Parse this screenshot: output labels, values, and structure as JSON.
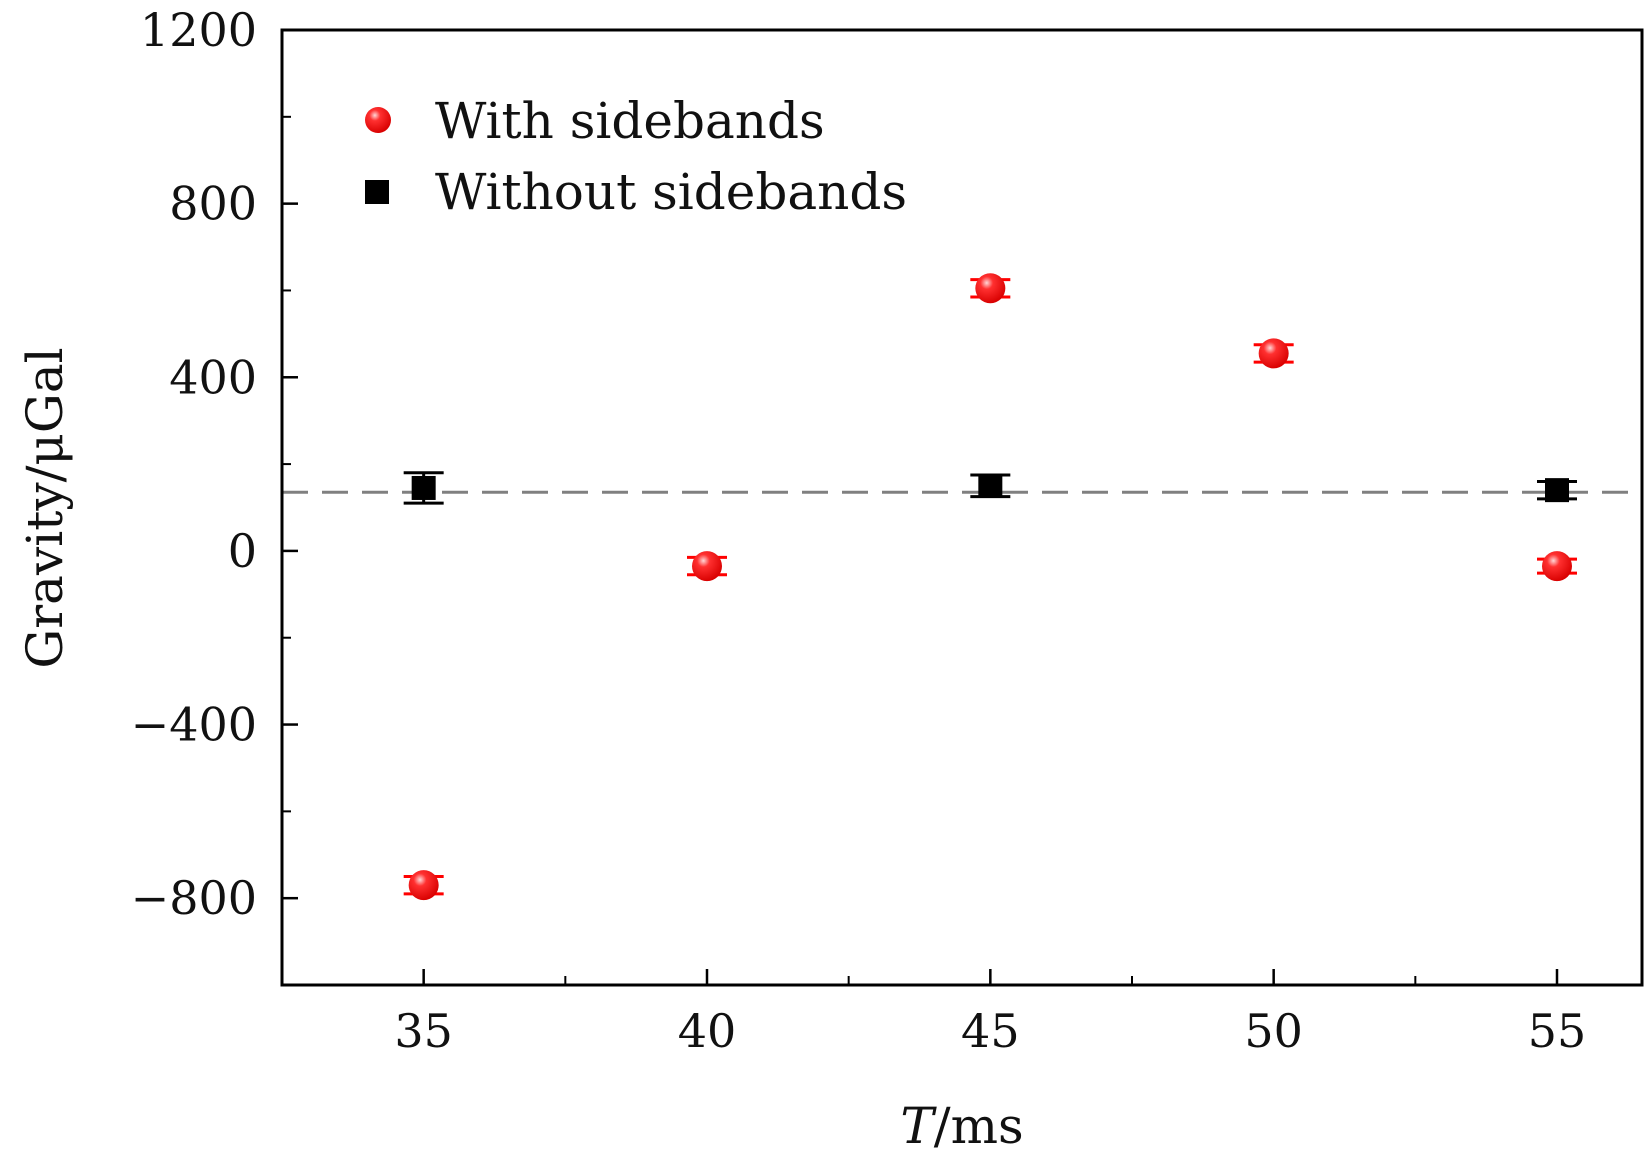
{
  "chart_data": {
    "type": "scatter",
    "title": "",
    "xlabel_var": "T",
    "xlabel_unit": "/ms",
    "ylabel": "Gravity/μGal",
    "xlim": [
      32.5,
      56.5
    ],
    "ylim": [
      -1000,
      1200
    ],
    "x_ticks": [
      35,
      40,
      45,
      50,
      55
    ],
    "x_tick_labels": [
      "35",
      "40",
      "45",
      "50",
      "55"
    ],
    "x_minor_ticks": [
      32.5,
      37.5,
      42.5,
      47.5,
      52.5
    ],
    "y_ticks": [
      1200,
      800,
      400,
      0,
      -400,
      -800
    ],
    "y_tick_labels": [
      "1200",
      "800",
      "400",
      "0",
      "−400",
      "−800"
    ],
    "y_minor_ticks": [
      1000,
      600,
      200,
      -200,
      -600
    ],
    "reference_line": {
      "y": 135,
      "style": "dashed",
      "color": "#808080"
    },
    "legend_position": "top-left",
    "series": [
      {
        "name": "With sidebands",
        "marker": "circle",
        "color": "#ff0000",
        "points": [
          {
            "x": 35,
            "y": -770,
            "err": 20
          },
          {
            "x": 40,
            "y": -35,
            "err": 20
          },
          {
            "x": 45,
            "y": 605,
            "err": 20
          },
          {
            "x": 50,
            "y": 455,
            "err": 20
          },
          {
            "x": 55,
            "y": -35,
            "err": 15
          }
        ]
      },
      {
        "name": "Without sidebands",
        "marker": "square",
        "color": "#000000",
        "points": [
          {
            "x": 35,
            "y": 145,
            "err": 35
          },
          {
            "x": 45,
            "y": 150,
            "err": 25
          },
          {
            "x": 55,
            "y": 140,
            "err": 20
          }
        ]
      }
    ]
  }
}
